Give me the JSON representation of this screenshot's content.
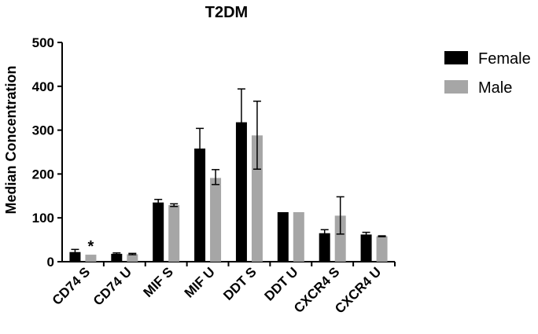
{
  "chart_data": {
    "type": "bar",
    "title": "T2DM",
    "xlabel": "",
    "ylabel": "Median Concentration",
    "ylim": [
      0,
      500
    ],
    "yticks": [
      "0",
      "100",
      "200",
      "300",
      "400",
      "500"
    ],
    "categories": [
      "CD74 S",
      "CD74 U",
      "MIF S",
      "MIF U",
      "DDT S",
      "DDT U",
      "CXCR4 S",
      "CXCR4 U"
    ],
    "series": [
      {
        "name": "Female",
        "color": "#000000",
        "values": [
          22,
          18,
          135,
          258,
          318,
          113,
          65,
          62
        ],
        "err_low": [
          17,
          16,
          128,
          218,
          240,
          113,
          58,
          58
        ],
        "err_high": [
          28,
          20,
          142,
          304,
          394,
          113,
          73,
          67
        ]
      },
      {
        "name": "Male",
        "color": "#a6a6a6",
        "values": [
          16,
          17,
          129,
          191,
          288,
          113,
          105,
          58
        ],
        "err_low": [
          16,
          16,
          126,
          176,
          211,
          113,
          63,
          57
        ],
        "err_high": [
          16,
          19,
          132,
          210,
          366,
          113,
          148,
          59
        ]
      }
    ],
    "annotations": [
      {
        "category": "CD74 S",
        "series": "Male",
        "text": "*"
      }
    ],
    "legend": "top-right",
    "grid": false
  }
}
